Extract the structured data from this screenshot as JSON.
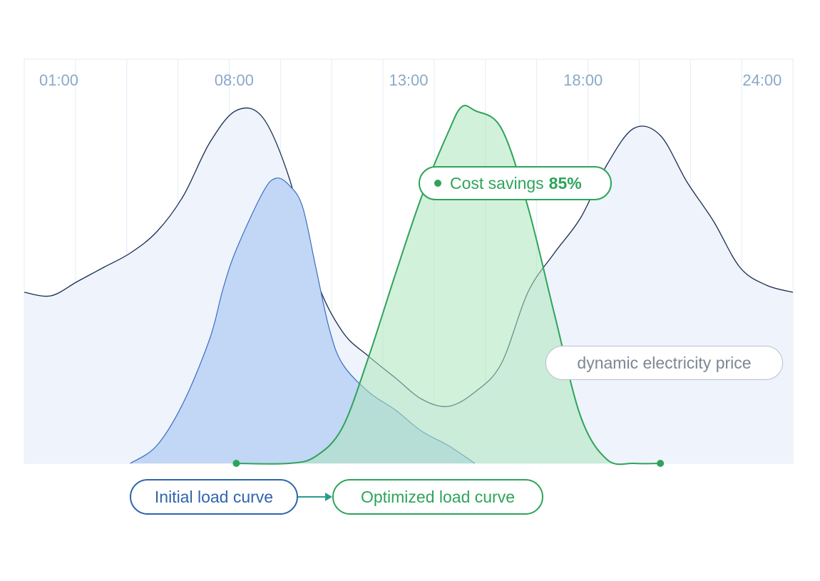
{
  "chart_data": {
    "type": "area",
    "x_ticks": [
      "01:00",
      "08:00",
      "13:00",
      "18:00",
      "24:00"
    ],
    "grid": true,
    "series": [
      {
        "name": "dynamic electricity price",
        "points": [
          [
            0,
            52
          ],
          [
            1,
            53
          ],
          [
            2,
            49
          ],
          [
            3,
            45
          ],
          [
            4,
            41
          ],
          [
            5,
            35
          ],
          [
            6,
            25
          ],
          [
            7,
            10
          ],
          [
            8,
            1
          ],
          [
            9,
            3
          ],
          [
            10,
            20
          ],
          [
            11,
            48
          ],
          [
            12,
            63
          ],
          [
            13,
            70
          ],
          [
            14,
            76
          ],
          [
            15,
            82
          ],
          [
            16,
            84
          ],
          [
            17,
            80
          ],
          [
            18,
            72
          ],
          [
            19,
            52
          ],
          [
            20,
            41
          ],
          [
            21,
            31
          ],
          [
            22,
            16
          ],
          [
            23,
            6
          ],
          [
            24,
            8
          ],
          [
            25,
            21
          ],
          [
            26,
            32
          ],
          [
            27,
            45
          ],
          [
            28,
            50
          ],
          [
            29,
            52
          ]
        ]
      },
      {
        "name": "Initial load curve",
        "points": [
          [
            4,
            100
          ],
          [
            5,
            95
          ],
          [
            6,
            83
          ],
          [
            7,
            65
          ],
          [
            7.5,
            51
          ],
          [
            8,
            40
          ],
          [
            9,
            24
          ],
          [
            9.5,
            20
          ],
          [
            10,
            22
          ],
          [
            10.5,
            28
          ],
          [
            11,
            45
          ],
          [
            11.5,
            62
          ],
          [
            12,
            72
          ],
          [
            13,
            80
          ],
          [
            14,
            85
          ],
          [
            15,
            91
          ],
          [
            16,
            95
          ],
          [
            17,
            100
          ]
        ]
      },
      {
        "name": "Optimized load curve",
        "points": [
          [
            8,
            100
          ],
          [
            10,
            100
          ],
          [
            11,
            98
          ],
          [
            12,
            90
          ],
          [
            13,
            70
          ],
          [
            14,
            47
          ],
          [
            15,
            25
          ],
          [
            16,
            7
          ],
          [
            16.5,
            0
          ],
          [
            17,
            1
          ],
          [
            18,
            6
          ],
          [
            19,
            28
          ],
          [
            20,
            58
          ],
          [
            21,
            87
          ],
          [
            22,
            99
          ],
          [
            23,
            100
          ],
          [
            24,
            100
          ]
        ]
      }
    ],
    "annotations": {
      "savings_label": "Cost savings",
      "savings_value": "85%"
    }
  }
}
